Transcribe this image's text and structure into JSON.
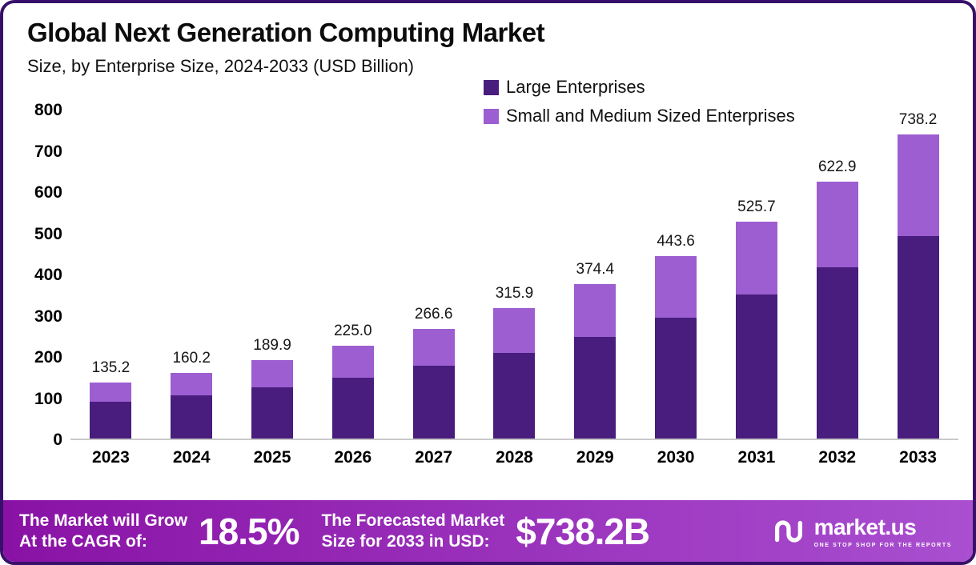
{
  "chart_data": {
    "type": "bar",
    "stacked": true,
    "title": "Global Next Generation Computing Market",
    "subtitle": "Size, by Enterprise Size, 2024-2033 (USD Billion)",
    "xlabel": "",
    "ylabel": "USD Billion",
    "ylim": [
      0,
      800
    ],
    "yticks": [
      800,
      700,
      600,
      500,
      400,
      300,
      200,
      100,
      0
    ],
    "grid": false,
    "legend_position": "top-right",
    "categories": [
      "2023",
      "2024",
      "2025",
      "2026",
      "2027",
      "2028",
      "2029",
      "2030",
      "2031",
      "2032",
      "2033"
    ],
    "series": [
      {
        "name": "Large Enterprises",
        "color": "#481d7d",
        "values": [
          89.0,
          104.0,
          125.0,
          148.0,
          177.0,
          207.0,
          247.0,
          294.0,
          350.0,
          415.0,
          492.0
        ]
      },
      {
        "name": "Small and Medium Sized Enterprises",
        "color": "#9c5ed1",
        "values": [
          46.2,
          56.2,
          64.9,
          77.0,
          89.6,
          108.9,
          127.4,
          149.6,
          175.7,
          207.9,
          246.2
        ]
      }
    ],
    "totals": [
      135.2,
      160.2,
      189.9,
      225.0,
      266.6,
      315.9,
      374.4,
      443.6,
      525.7,
      622.9,
      738.2
    ],
    "total_labels": [
      "135.2",
      "160.2",
      "189.9",
      "225.0",
      "266.6",
      "315.9",
      "374.4",
      "443.6",
      "525.7",
      "622.9",
      "738.2"
    ]
  },
  "footer": {
    "cagr_line1": "The Market will Grow",
    "cagr_line2": "At the CAGR of:",
    "cagr_value": "18.5%",
    "forecast_line1": "The Forecasted Market",
    "forecast_line2": "Size for 2033 in USD:",
    "forecast_value": "$738.2B",
    "brand": "market.us",
    "tagline": "ONE STOP SHOP FOR THE REPORTS"
  },
  "colors": {
    "frame_border": "#38106b",
    "bar_large": "#481d7d",
    "bar_sme": "#9c5ed1",
    "footer_gradient_start": "#8912a5",
    "footer_gradient_end": "#a94fd0"
  }
}
